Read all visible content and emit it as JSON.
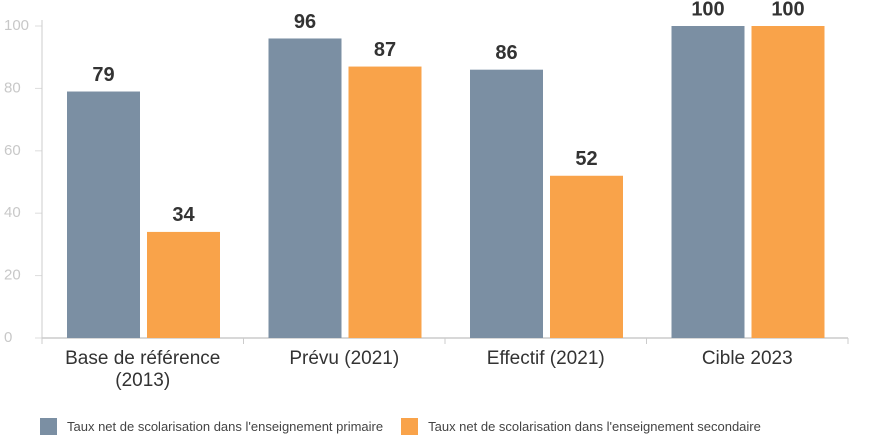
{
  "chart_data": {
    "type": "bar",
    "categories": [
      "Base de référence (2013)",
      "Prévu (2021)",
      "Effectif (2021)",
      "Cible 2023"
    ],
    "series": [
      {
        "name": "Taux net de scolarisation dans l'enseignement primaire",
        "color": "#7b8fa3",
        "values": [
          79,
          96,
          86,
          100
        ]
      },
      {
        "name": "Taux net de scolarisation dans l'enseignement secondaire",
        "color": "#f9a34a",
        "values": [
          34,
          87,
          52,
          100
        ]
      }
    ],
    "ylim": [
      0,
      100
    ],
    "yticks": [
      0,
      20,
      40,
      60,
      80,
      100
    ],
    "grid": false,
    "legend": "bottom"
  }
}
